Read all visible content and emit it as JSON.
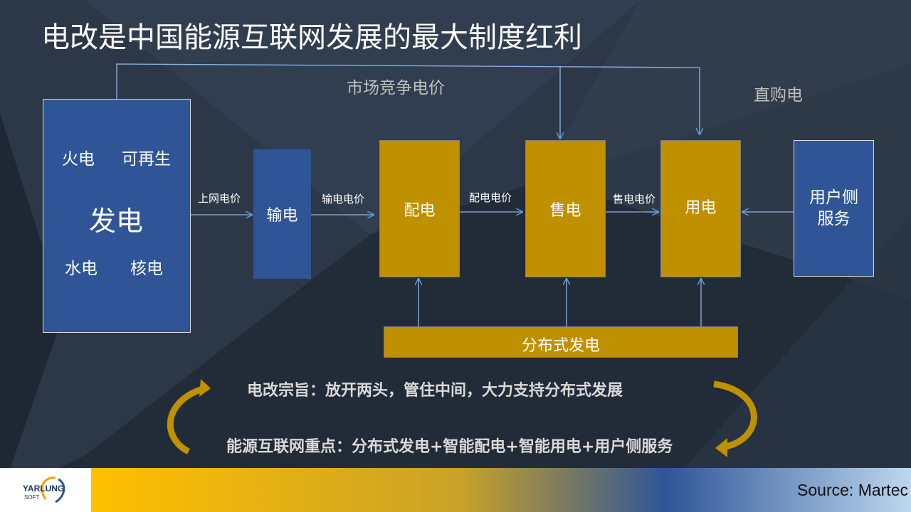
{
  "slide": {
    "title": "电改是中国能源互联网发展的最大制度红利"
  },
  "diagram": {
    "generation": {
      "main": "发电",
      "thermal": "火电",
      "renewable": "可再生",
      "hydro": "水电",
      "nuclear": "核电"
    },
    "transmission": "输电",
    "distribution": "配电",
    "retail": "售电",
    "consumption": "用电",
    "user_services": "用户侧服务",
    "distributed_generation": "分布式发电",
    "edges": {
      "grid_price": "上网电价",
      "transmission_price": "输电电价",
      "distribution_price": "配电电价",
      "retail_price": "售电电价",
      "market_price": "市场竞争电价",
      "direct_purchase": "直购电"
    }
  },
  "notes": {
    "principle": "电改宗旨：放开两头，管住中间，大力支持分布式发展",
    "focus": "能源互联网重点：分布式发电+智能配电+智能用电+用户侧服务"
  },
  "footer": {
    "logo_text": "YARLUNG",
    "logo_sub": "SOFT",
    "source": "Source: Martec"
  },
  "colors": {
    "blue_box": "#2f5597",
    "gold_box": "#bf9000",
    "arrow": "#5b9bd5"
  }
}
